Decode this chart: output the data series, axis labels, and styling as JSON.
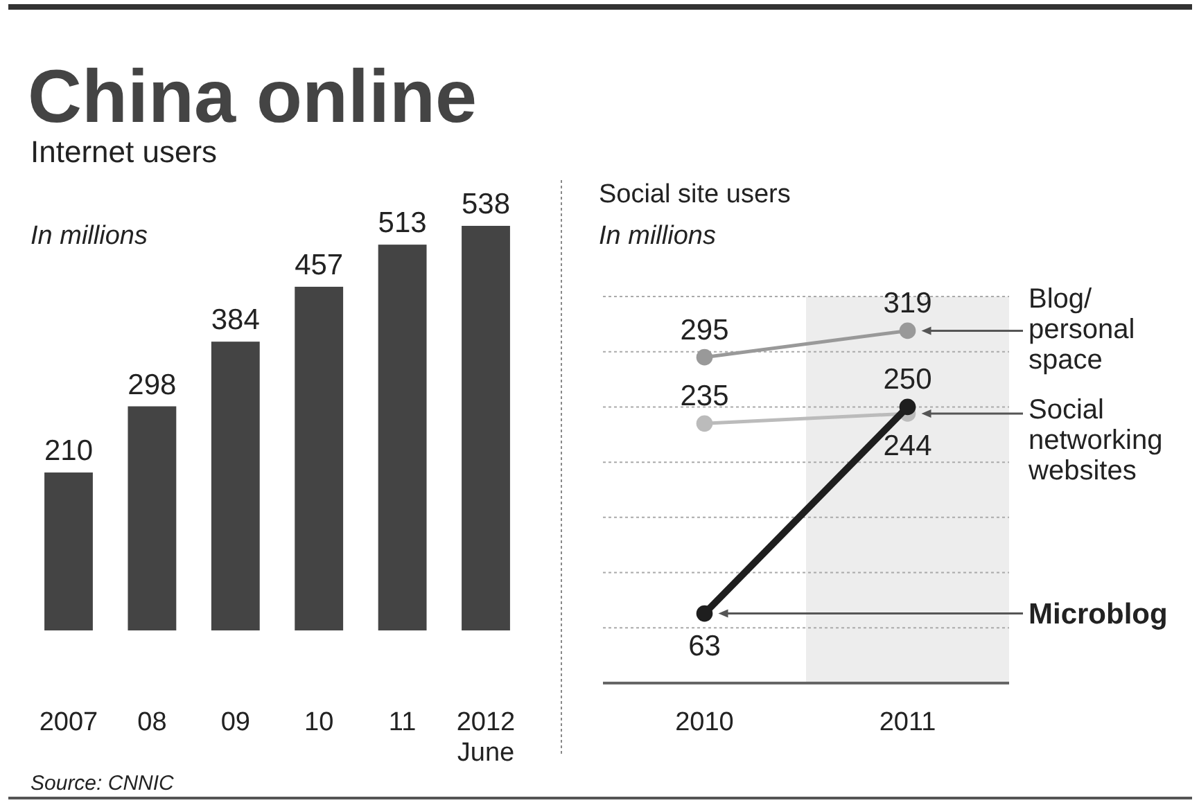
{
  "chart_data": [
    {
      "type": "bar",
      "title": "China online",
      "subtitle": "Internet users",
      "ylabel": "In millions",
      "categories": [
        "2007",
        "08",
        "09",
        "10",
        "11",
        "2012 June"
      ],
      "values": [
        210,
        298,
        384,
        457,
        513,
        538
      ],
      "color": "#444444",
      "data_labels": true,
      "tick_labels": "x",
      "annotations": [
        "Source: CNNIC"
      ]
    },
    {
      "type": "line",
      "title": "Social site users",
      "ylabel": "In millions",
      "categories": [
        "2010",
        "2011"
      ],
      "series": [
        {
          "name": "Blog/ personal space",
          "color": "#999999",
          "values": [
            295,
            319
          ]
        },
        {
          "name": "Social networking websites",
          "color": "#bbbbbb",
          "values": [
            235,
            244
          ]
        },
        {
          "name": "Microblog",
          "color": "#1e1e1e",
          "values": [
            63,
            250
          ]
        }
      ],
      "ylim": [
        0,
        350
      ],
      "yticks": [
        {
          "value": 0,
          "label": null
        },
        {
          "value": 50,
          "label": null
        },
        {
          "value": 100,
          "label": null
        },
        {
          "value": 150,
          "label": null
        },
        {
          "value": 200,
          "label": null
        },
        {
          "value": 250,
          "label": null
        },
        {
          "value": 300,
          "label": null
        },
        {
          "value": 350,
          "label": null
        }
      ],
      "grid": "y",
      "marker": "circle",
      "data_labels": true,
      "tick_labels": "x",
      "legend": false,
      "bands": [
        {
          "axis": "x",
          "from": "2011",
          "to": "2011",
          "color": "#ededed"
        }
      ]
    }
  ]
}
